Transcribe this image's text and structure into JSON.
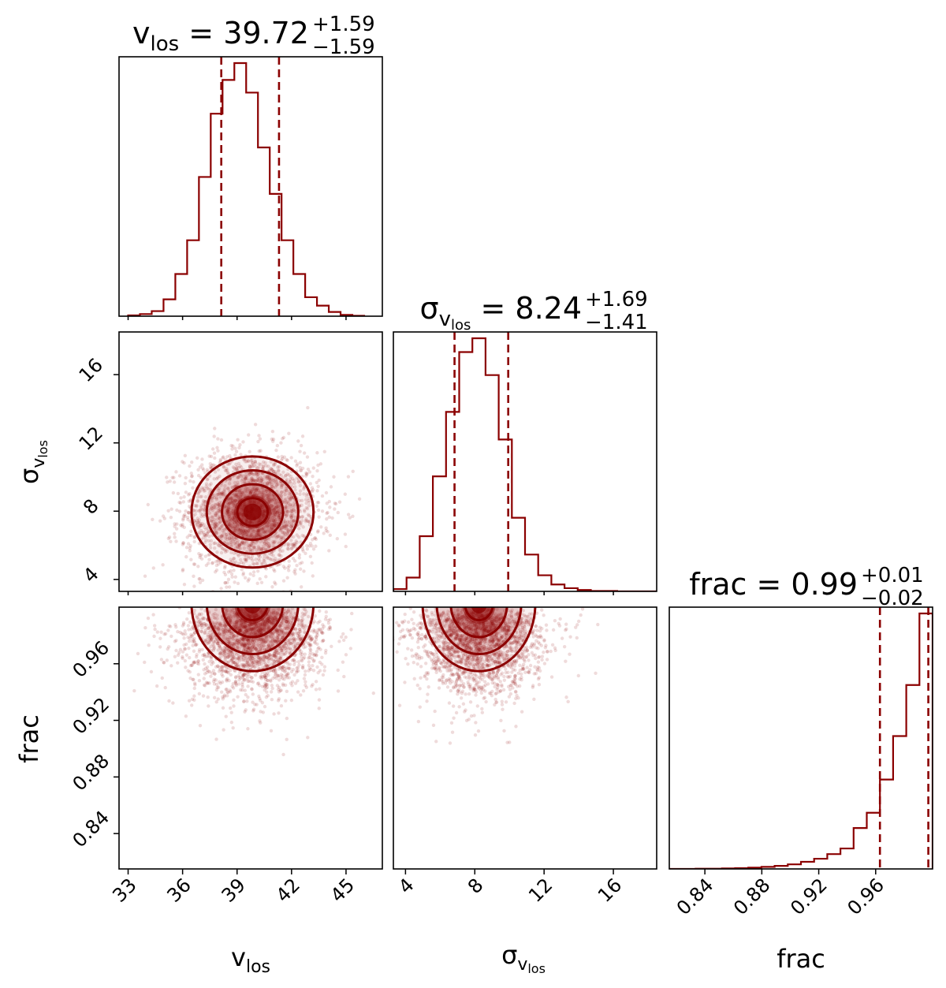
{
  "chart_data": {
    "type": "corner",
    "color": "#8b0000",
    "parameters": [
      {
        "key": "vlos",
        "label_base": "v",
        "label_sub": "los",
        "label_symbol": "",
        "title_value": "39.72",
        "title_plus": "+1.59",
        "title_minus": "−1.59",
        "range": [
          32.5,
          47.0
        ],
        "ticks": [
          33,
          36,
          39,
          42,
          45
        ],
        "tick_labels": [
          "33",
          "36",
          "39",
          "42",
          "45"
        ],
        "quantiles": [
          38.13,
          41.31
        ],
        "hist_edges_start": 33.0,
        "hist_bin_width": 0.65,
        "hist_counts": [
          2,
          5,
          12,
          40,
          100,
          180,
          330,
          480,
          560,
          600,
          530,
          400,
          290,
          180,
          100,
          45,
          25,
          10,
          3,
          1
        ]
      },
      {
        "key": "sigma",
        "label_base": "σ",
        "label_sub": "los",
        "label_symbol": "v",
        "title_value": "8.24",
        "title_plus": "+1.69",
        "title_minus": "−1.41",
        "range": [
          3.3,
          18.5
        ],
        "ticks": [
          4,
          8,
          12,
          16
        ],
        "tick_labels": [
          "4",
          "8",
          "12",
          "16"
        ],
        "quantiles": [
          6.83,
          9.93
        ],
        "hist_edges_start": 3.3,
        "hist_bin_width": 0.76,
        "hist_counts": [
          5,
          30,
          120,
          250,
          390,
          520,
          550,
          470,
          330,
          160,
          80,
          35,
          15,
          7,
          3,
          1,
          1,
          0,
          0,
          0
        ]
      },
      {
        "key": "frac",
        "label_base": "frac",
        "label_sub": "",
        "label_symbol": "",
        "title_value": "0.99",
        "title_plus": "+0.01",
        "title_minus": "−0.02",
        "range": [
          0.815,
          1.0
        ],
        "ticks": [
          0.84,
          0.88,
          0.92,
          0.96
        ],
        "tick_labels": [
          "0.84",
          "0.88",
          "0.92",
          "0.96"
        ],
        "quantiles": [
          0.963,
          0.997
        ],
        "hist_edges_start": 0.815,
        "hist_bin_width": 0.00925,
        "hist_counts": [
          0,
          0,
          1,
          1,
          2,
          3,
          5,
          8,
          12,
          18,
          28,
          40,
          58,
          80,
          160,
          220,
          350,
          520,
          720,
          1000
        ]
      }
    ],
    "contour_levels_sigma": [
      0.5,
      1.0,
      1.5,
      2.0
    ],
    "joint": [
      {
        "x": "vlos",
        "y": "sigma",
        "mean": [
          39.85,
          7.95
        ],
        "sd": [
          1.6,
          1.55
        ],
        "shape": "gaussian",
        "n_points": 2200
      },
      {
        "x": "vlos",
        "y": "frac",
        "mean": [
          39.85,
          0.99
        ],
        "sd": [
          1.6,
          0.02
        ],
        "shape": "bounded-top",
        "n_points": 2200
      },
      {
        "x": "sigma",
        "y": "frac",
        "mean": [
          8.24,
          0.99
        ],
        "sd": [
          1.55,
          0.02
        ],
        "shape": "bounded-top",
        "n_points": 2200
      }
    ]
  }
}
